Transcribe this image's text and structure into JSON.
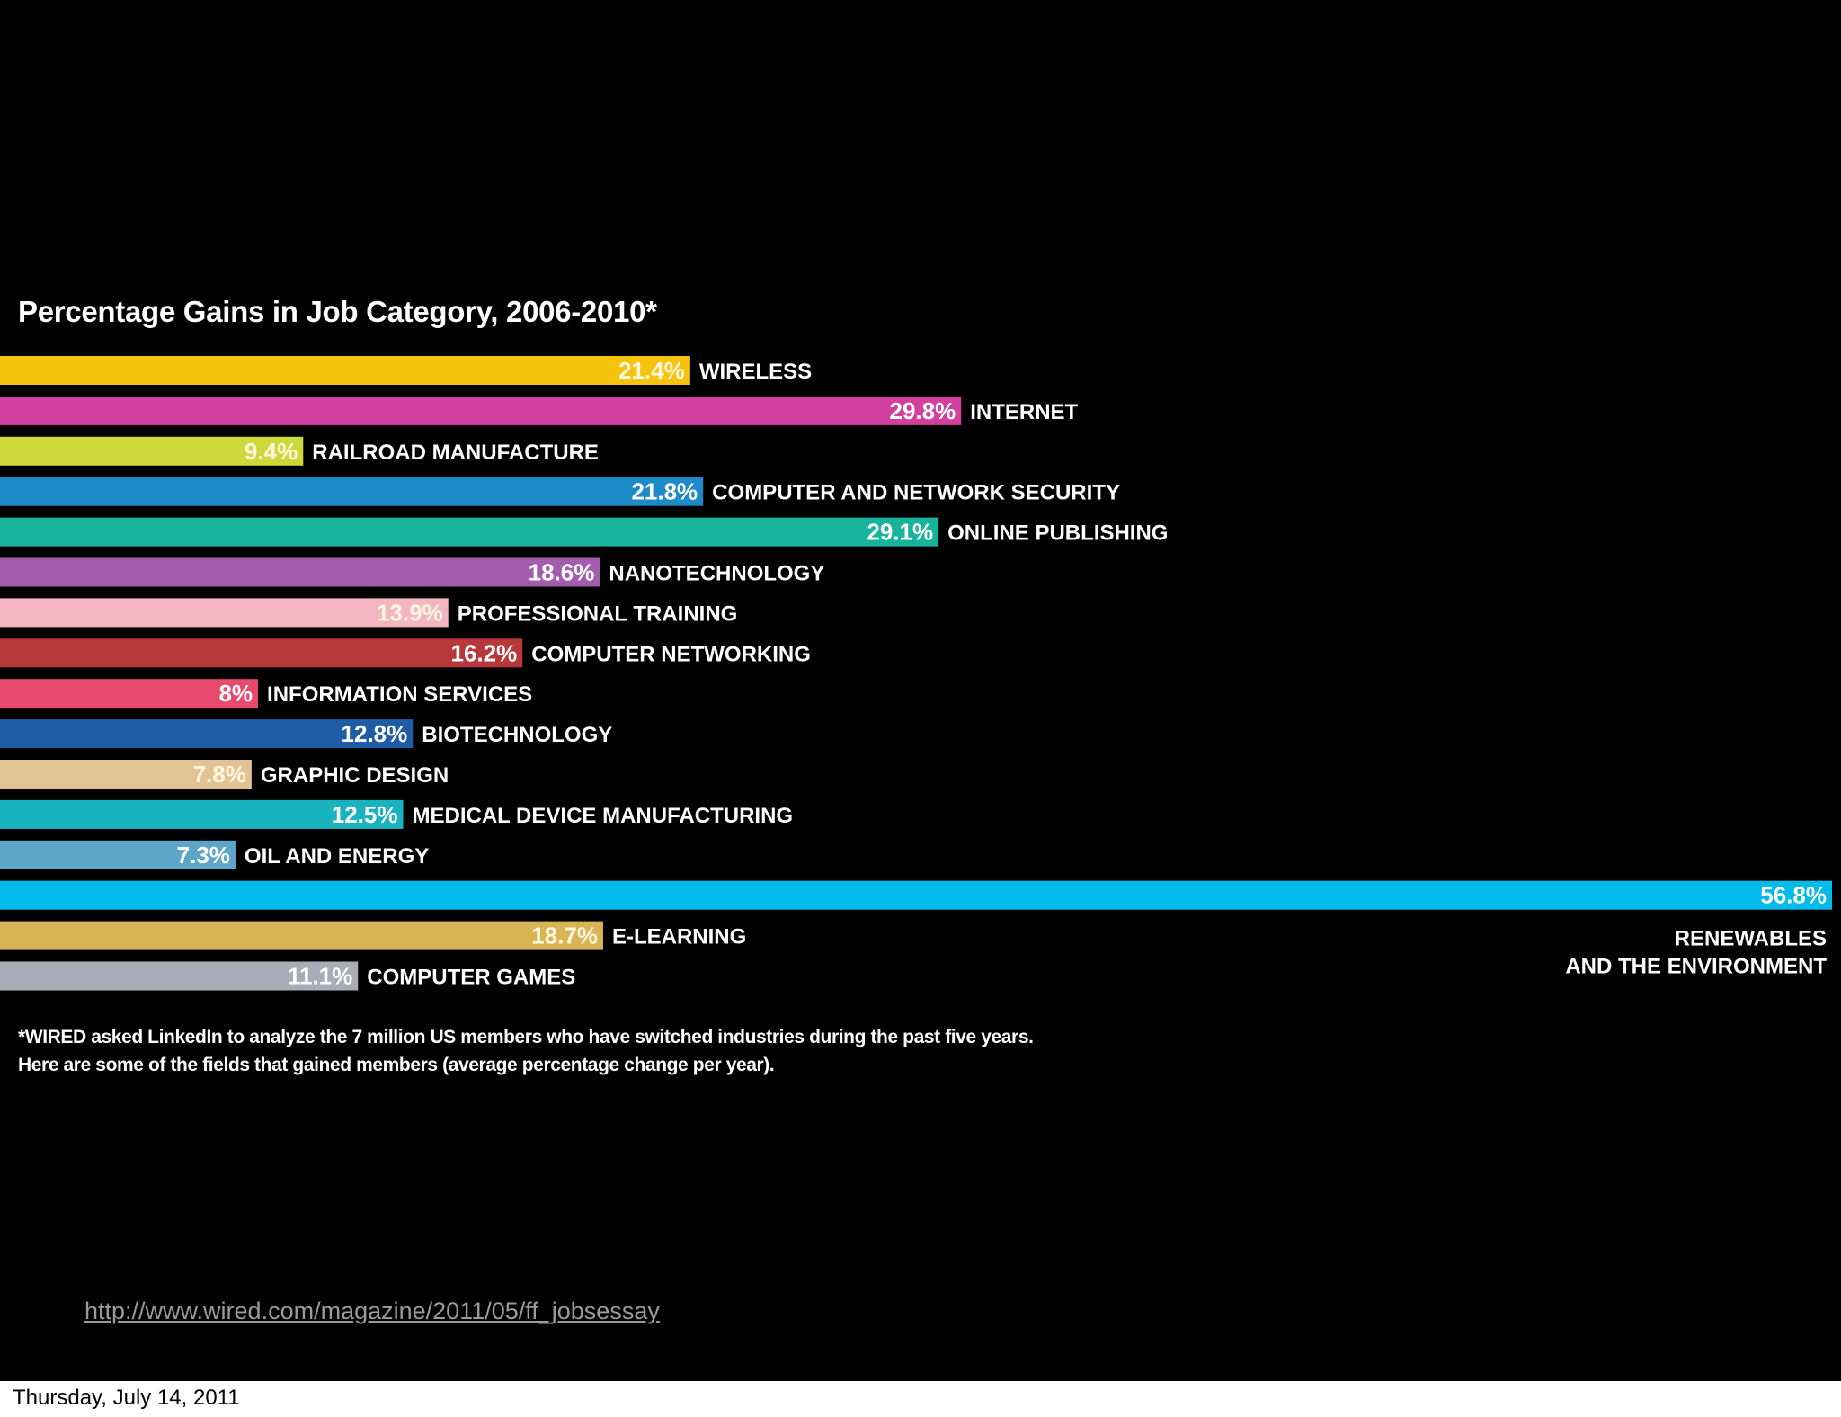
{
  "footer": {
    "date": "Thursday, July 14, 2011"
  },
  "slide": {
    "background": "#000000",
    "link": "http://www.wired.com/magazine/2011/05/ff_jobsessay"
  },
  "chart_data": {
    "type": "bar",
    "orientation": "horizontal",
    "title": "Percentage Gains in Job Category, 2006-2010*",
    "xlabel": "",
    "ylabel": "",
    "xlim": [
      0,
      56.8
    ],
    "grid": false,
    "legend": "none",
    "value_suffix": "%",
    "categories": [
      "WIRELESS",
      "INTERNET",
      "RAILROAD MANUFACTURE",
      "COMPUTER AND NETWORK SECURITY",
      "ONLINE PUBLISHING",
      "NANOTECHNOLOGY",
      "PROFESSIONAL TRAINING",
      "COMPUTER NETWORKING",
      "INFORMATION SERVICES",
      "BIOTECHNOLOGY",
      "GRAPHIC DESIGN",
      "MEDICAL DEVICE MANUFACTURING",
      "OIL AND ENERGY",
      "RENEWABLES AND THE ENVIRONMENT",
      "E-LEARNING",
      "COMPUTER GAMES"
    ],
    "values": [
      21.4,
      29.8,
      9.4,
      21.8,
      29.1,
      18.6,
      13.9,
      16.2,
      8,
      12.8,
      7.8,
      12.5,
      7.3,
      56.8,
      18.7,
      11.1
    ],
    "value_labels": [
      "21.4%",
      "29.8%",
      "9.4%",
      "21.8%",
      "29.1%",
      "18.6%",
      "13.9%",
      "16.2%",
      "8%",
      "12.8%",
      "7.8%",
      "12.5%",
      "7.3%",
      "56.8%",
      "18.7%",
      "11.1%"
    ],
    "colors": [
      "#f6c40f",
      "#d23f9d",
      "#cdd83a",
      "#1c8ac8",
      "#17b39d",
      "#a35cae",
      "#f3b5c1",
      "#b8373a",
      "#e84a6e",
      "#1e5ca6",
      "#e2c393",
      "#19b3c0",
      "#5ea6c9",
      "#00bbea",
      "#d8b455",
      "#a9abb9"
    ],
    "footnote": [
      "*WIRED asked LinkedIn to analyze the 7 million US members who have switched industries during the past five years.",
      "Here are some of the fields that gained members (average percentage change per year)."
    ]
  }
}
